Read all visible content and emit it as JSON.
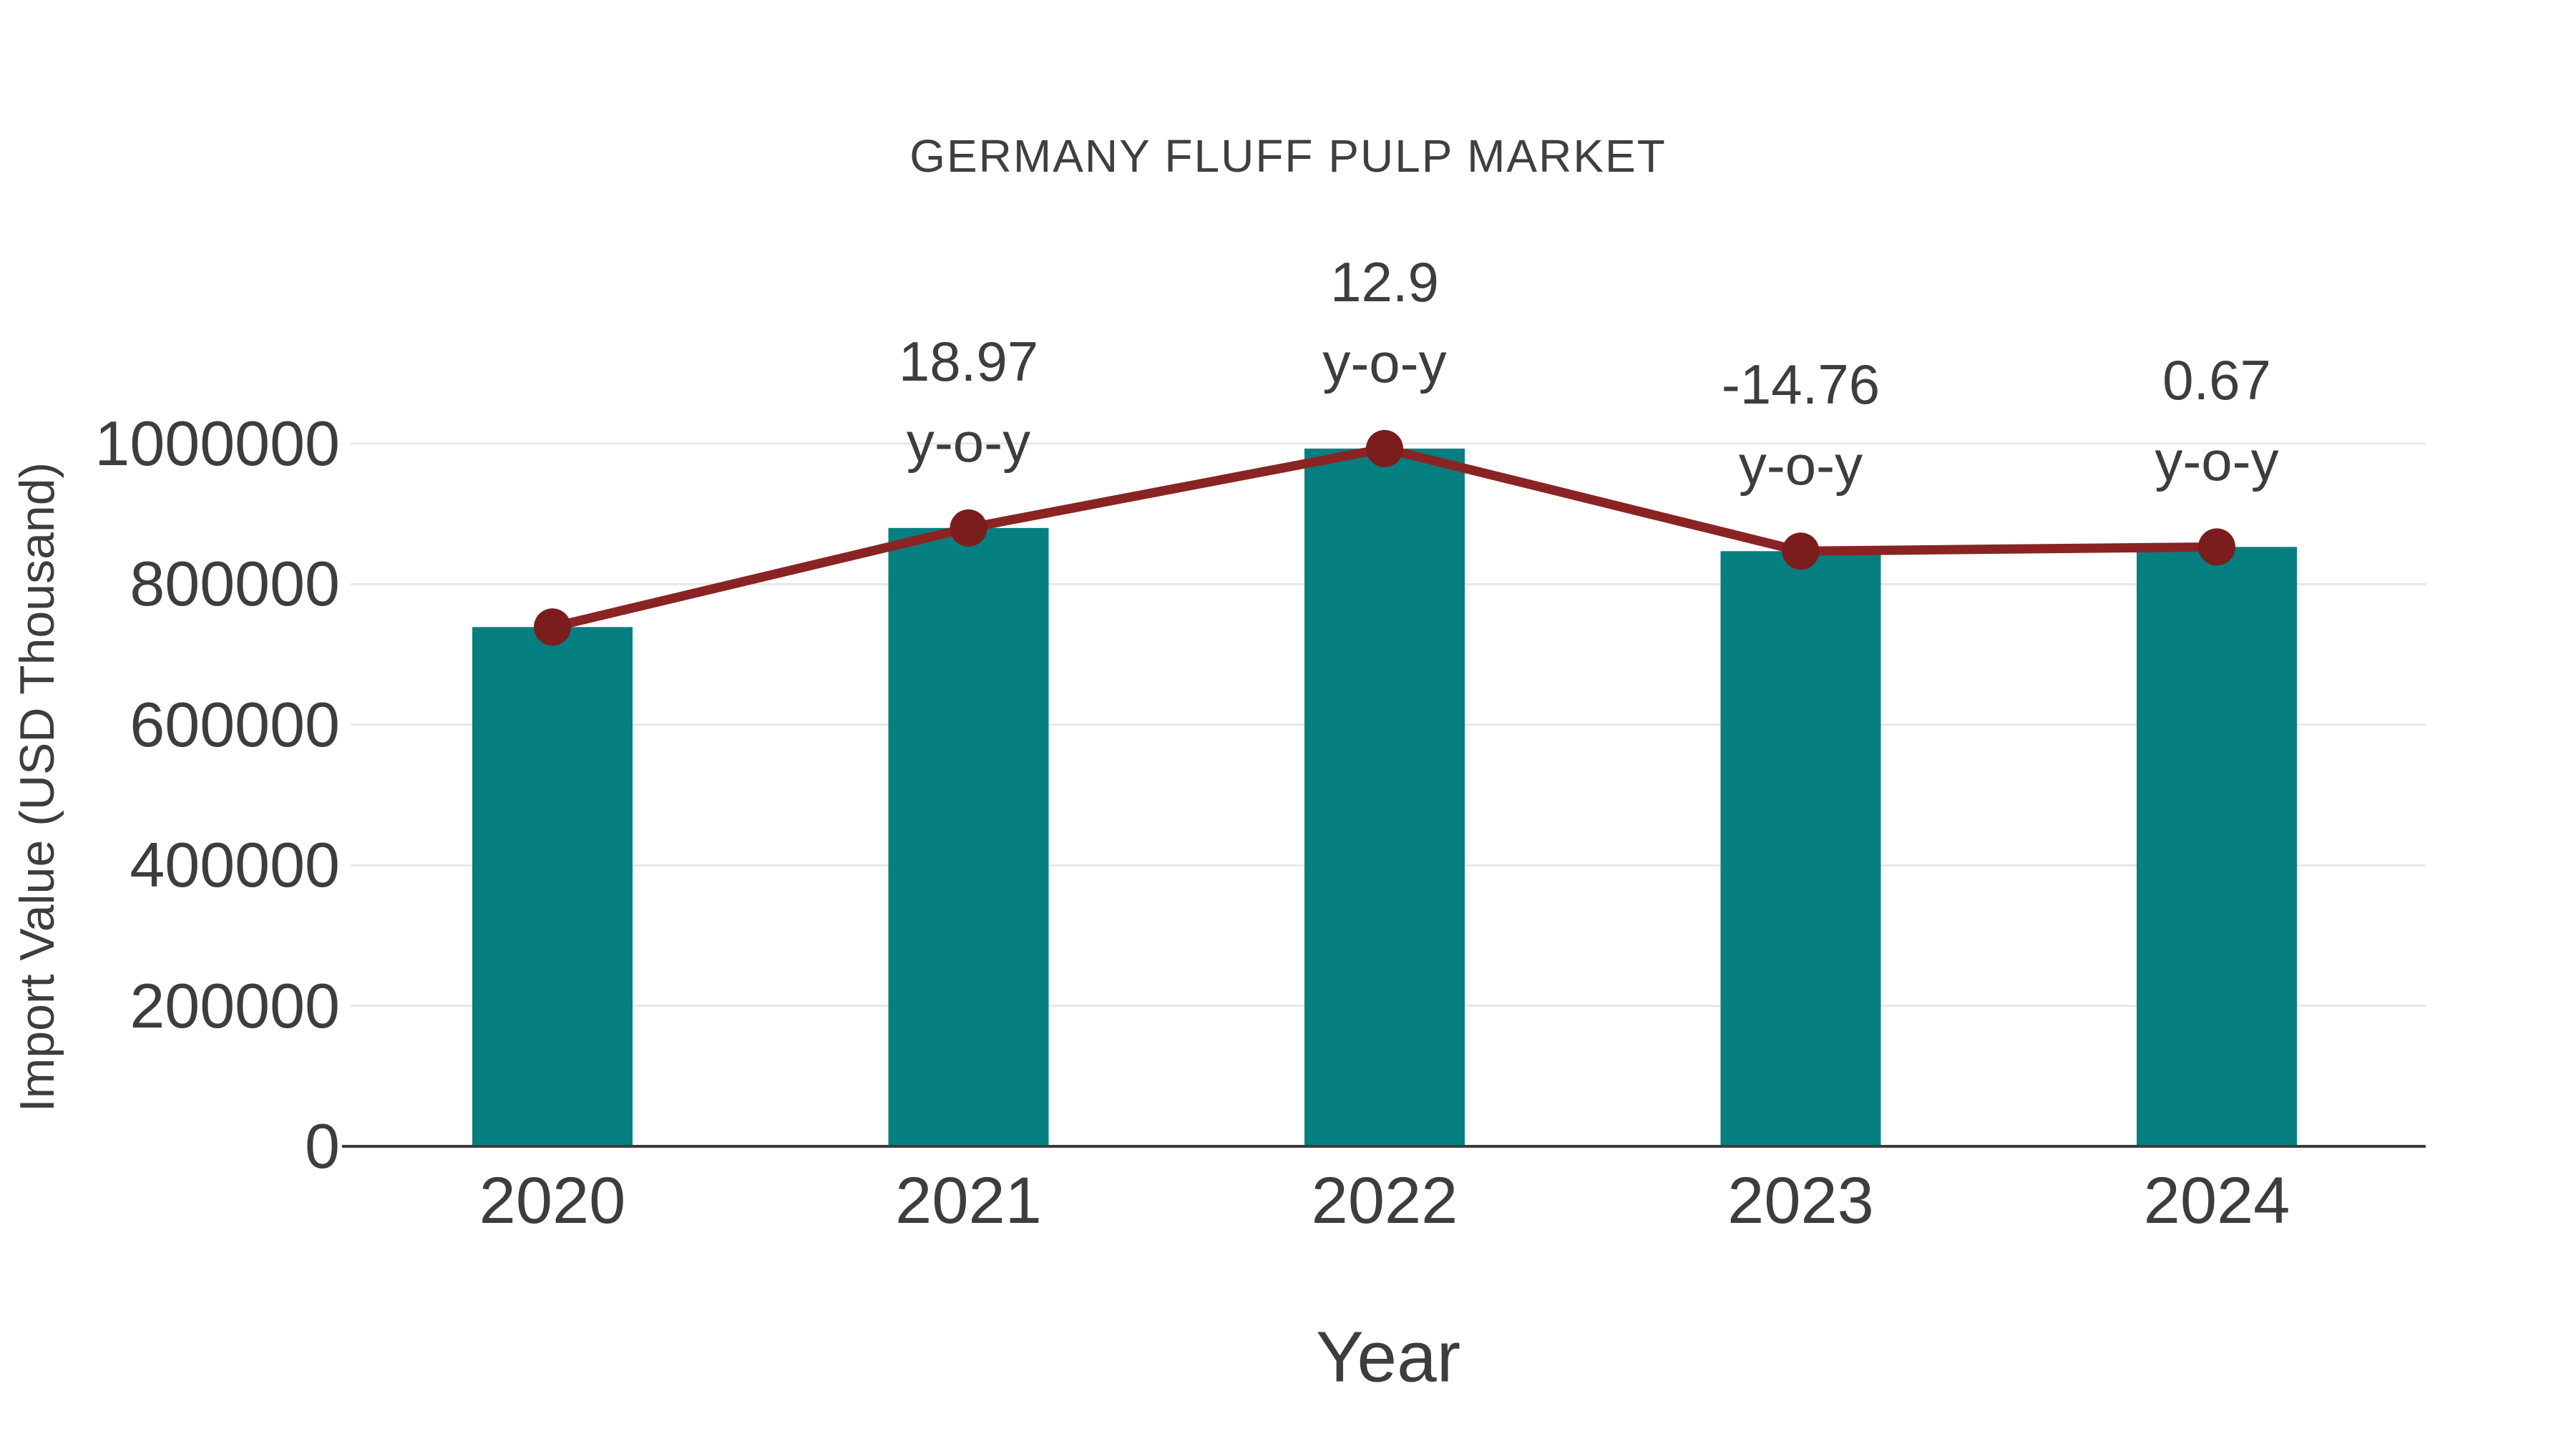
{
  "chart_data": {
    "type": "bar",
    "title": "GERMANY FLUFF PULP MARKET",
    "xlabel": "Year",
    "ylabel": "Import Value (USD Thousand)",
    "categories": [
      "2020",
      "2021",
      "2022",
      "2023",
      "2024"
    ],
    "series": [
      {
        "name": "Import Value (USD Thousand)",
        "type": "bar",
        "values": [
          739000,
          880000,
          993000,
          847000,
          853000
        ]
      },
      {
        "name": "y-o-y growth",
        "type": "line",
        "values": [
          739000,
          880000,
          993000,
          847000,
          853000
        ],
        "yoy_percent": [
          null,
          18.97,
          12.9,
          -14.76,
          0.67
        ],
        "point_labels": [
          "",
          "18.97",
          "12.9",
          "-14.76",
          "0.67"
        ],
        "label_suffix": "y-o-y"
      }
    ],
    "yticks": [
      0,
      200000,
      400000,
      600000,
      800000,
      1000000
    ],
    "ylim": [
      0,
      1016000
    ],
    "grid": "horizontal",
    "legend": "none",
    "colors": {
      "bar": "#067F80",
      "line": "#8A2424",
      "marker": "#7B1D1D",
      "grid": "#E7E7E7",
      "axis": "#3C3C3C",
      "text": "#3D3D3D"
    }
  }
}
